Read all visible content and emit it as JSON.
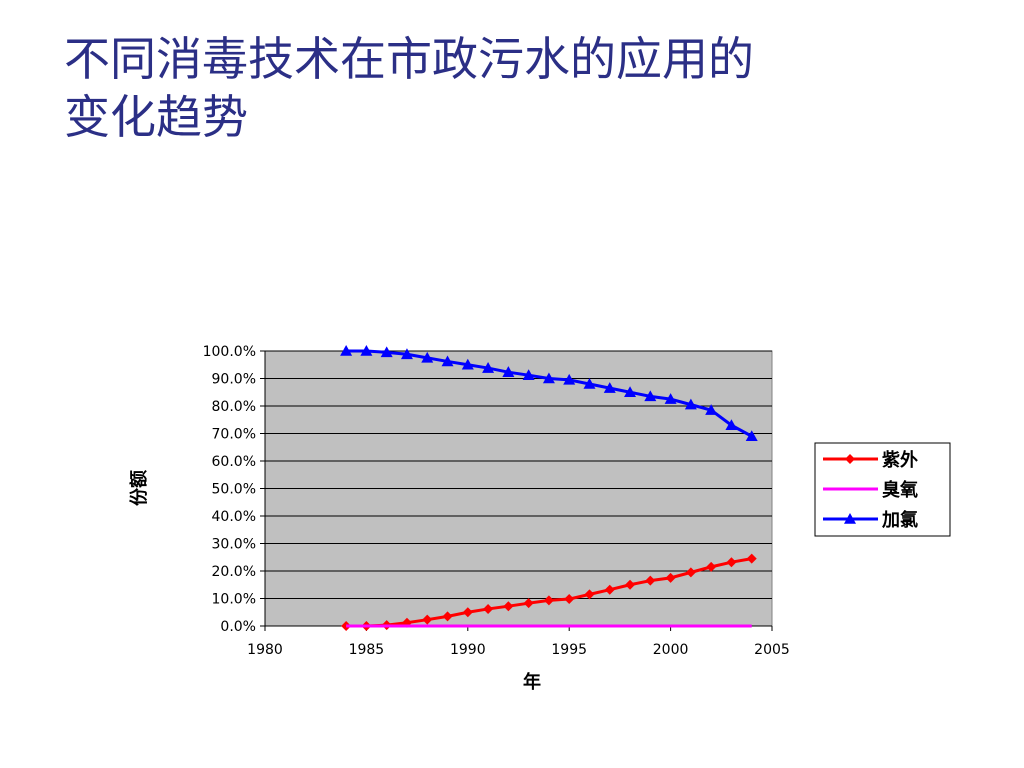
{
  "slide": {
    "title_line1": "不同消毒技术在市政污水的应用的",
    "title_line2": "变化趋势"
  },
  "chart_data": {
    "type": "line",
    "title": "",
    "xlabel": "年",
    "ylabel": "份额",
    "xlim": [
      1980,
      2005
    ],
    "ylim": [
      0,
      100
    ],
    "x_ticks": [
      1980,
      1985,
      1990,
      1995,
      2000,
      2005
    ],
    "y_ticks": [
      0,
      10,
      20,
      30,
      40,
      50,
      60,
      70,
      80,
      90,
      100
    ],
    "y_tick_labels": [
      "0.0%",
      "10.0%",
      "20.0%",
      "30.0%",
      "40.0%",
      "50.0%",
      "60.0%",
      "70.0%",
      "80.0%",
      "90.0%",
      "100.0%"
    ],
    "x_tick_labels": [
      "1980",
      "1985",
      "1990",
      "1995",
      "2000",
      "2005"
    ],
    "grid": true,
    "plot_background": "#c0c0c0",
    "legend_position": "right",
    "x": [
      1984,
      1985,
      1986,
      1987,
      1988,
      1989,
      1990,
      1991,
      1992,
      1993,
      1994,
      1995,
      1996,
      1997,
      1998,
      1999,
      2000,
      2001,
      2002,
      2003,
      2004
    ],
    "series": [
      {
        "name": "紫外",
        "color": "#ff0000",
        "marker": "diamond",
        "values": [
          0,
          0,
          0.3,
          1.2,
          2.3,
          3.5,
          5,
          6.2,
          7.2,
          8.3,
          9.3,
          9.8,
          11.5,
          13.2,
          15,
          16.5,
          17.5,
          19.5,
          21.5,
          23.2,
          24.5
        ]
      },
      {
        "name": "臭氧",
        "color": "#ff00ff",
        "marker": "none",
        "values": [
          0,
          0,
          0,
          0,
          0,
          0,
          0,
          0,
          0,
          0,
          0,
          0,
          0,
          0,
          0,
          0,
          0,
          0,
          0,
          0,
          0
        ]
      },
      {
        "name": "加氯",
        "color": "#0000ff",
        "marker": "triangle",
        "values": [
          100,
          100,
          99.5,
          98.8,
          97.5,
          96.2,
          95,
          93.8,
          92.3,
          91.2,
          90,
          89.5,
          88,
          86.5,
          85,
          83.5,
          82.5,
          80.5,
          78.5,
          73,
          69
        ]
      }
    ]
  }
}
